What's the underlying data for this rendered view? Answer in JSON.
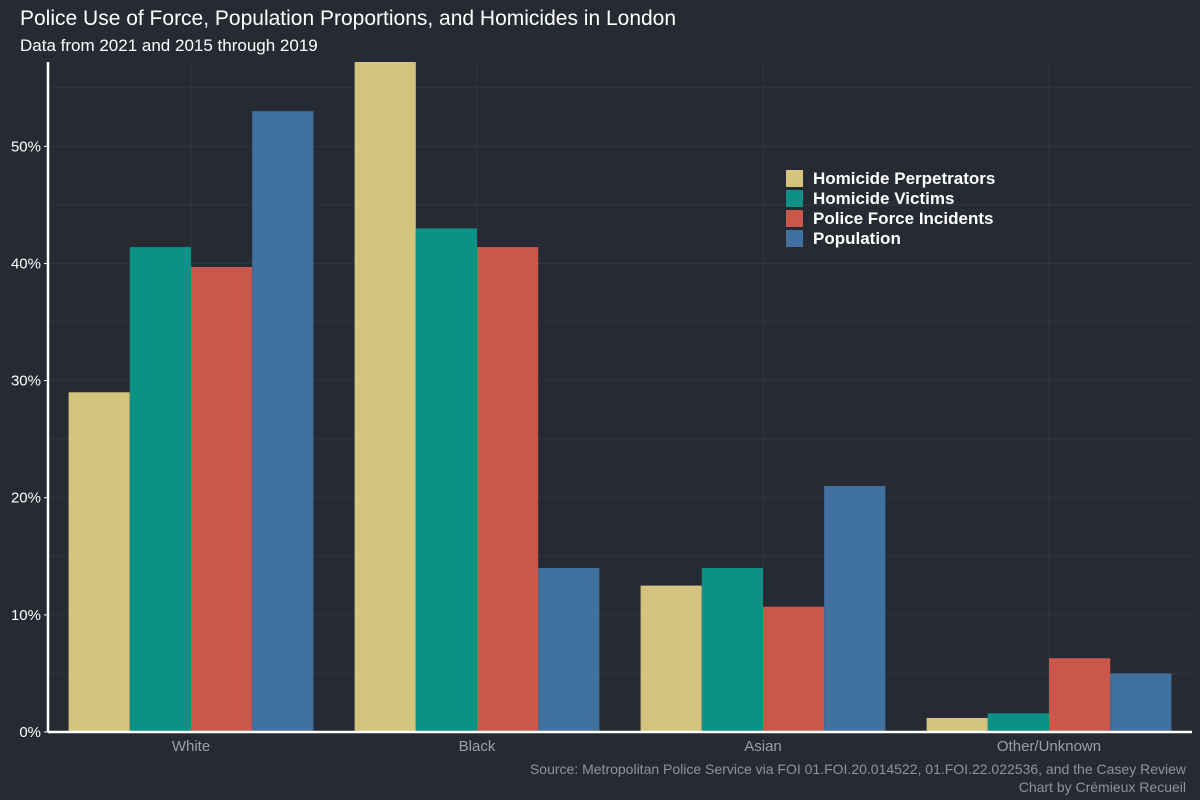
{
  "chart_data": {
    "type": "bar",
    "title": "Police Use of Force, Population Proportions, and Homicides in London",
    "subtitle": "Data from 2021 and 2015 through 2019",
    "categories": [
      "White",
      "Black",
      "Asian",
      "Other/Unknown"
    ],
    "series": [
      {
        "name": "Homicide Perpetrators",
        "color": "#d4c47e",
        "values": [
          29.0,
          57.2,
          12.5,
          1.2
        ]
      },
      {
        "name": "Homicide Victims",
        "color": "#0b9186",
        "values": [
          41.4,
          43.0,
          14.0,
          1.6
        ]
      },
      {
        "name": "Police Force Incidents",
        "color": "#c9574c",
        "values": [
          39.7,
          41.4,
          10.7,
          6.3
        ]
      },
      {
        "name": "Population",
        "color": "#41719e",
        "values": [
          53.0,
          14.0,
          21.0,
          5.0
        ]
      }
    ],
    "y_ticks": [
      "0%",
      "10%",
      "20%",
      "30%",
      "40%",
      "50%"
    ],
    "y_tick_values": [
      0,
      10,
      20,
      30,
      40,
      50
    ],
    "ylim": [
      0,
      57.2
    ],
    "grid": true,
    "legend_position": "top-right",
    "caption": [
      "Source: Metropolitan Police Service via FOI 01.FOI.20.014522, 01.FOI.22.022536, and the Casey Review",
      "Chart by Crémieux Recueil"
    ]
  }
}
